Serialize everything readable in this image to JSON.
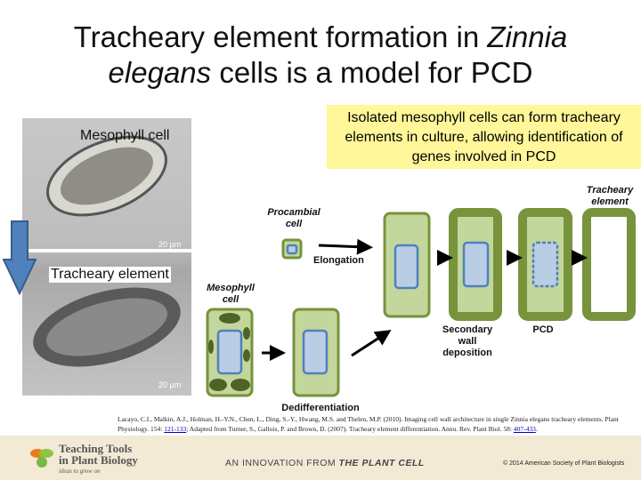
{
  "title": {
    "part1": "Tracheary element formation in ",
    "italic1": "Zinnia",
    "part2": "elegans",
    "part3": " cells is a model for PCD"
  },
  "callout": "Isolated mesophyll cells can form tracheary elements in culture, allowing identification of genes involved in PCD",
  "photo": {
    "top_label": "Mesophyll cell",
    "bottom_label": "Tracheary element",
    "scale_top": "20 µm",
    "scale_bottom": "20 µm"
  },
  "diagram": {
    "procambial": "Procambial cell",
    "elongation": "Elongation",
    "mesophyll": "Mesophyll cell",
    "secondary": "Secondary wall deposition",
    "pcd": "PCD",
    "te": "Tracheary element",
    "dediff": "Dedifferentiation"
  },
  "colors": {
    "cell_fill": "#c3d69b",
    "wall": "#77933c",
    "nucleus_fill": "#b9cde5",
    "nucleus_border": "#4f81bd",
    "chloroplast": "#4f6228",
    "callout": "#fff799",
    "arrow": "#4f81bd"
  },
  "citation": {
    "text1": "Lacayo, C.I., Malkin, A.J., Holman, H.-Y.N., Chen, L., Ding, S.-Y., Hwang, M.S. and Thelen, M.P. (2010). Imaging cell wall architecture in single Zinnia elegans tracheary elements. Plant Physiology. 154: ",
    "link1": "121-133",
    "text2": "; Adapted from Turner, S., Gallois, P. and Brown, D. (2007). Tracheary element differentiation. Annu. Rev. Plant Biol. 58: ",
    "link2": "407-433",
    "text3": "."
  },
  "footer": {
    "logo1": "Teaching Tools",
    "logo2": "in Plant Biology",
    "tagline": "ideas to grow on",
    "innovation": "AN INNOVATION FROM ",
    "plantcell": "THE PLANT CELL",
    "copyright": "© 2014 American Society of Plant Biologists"
  }
}
